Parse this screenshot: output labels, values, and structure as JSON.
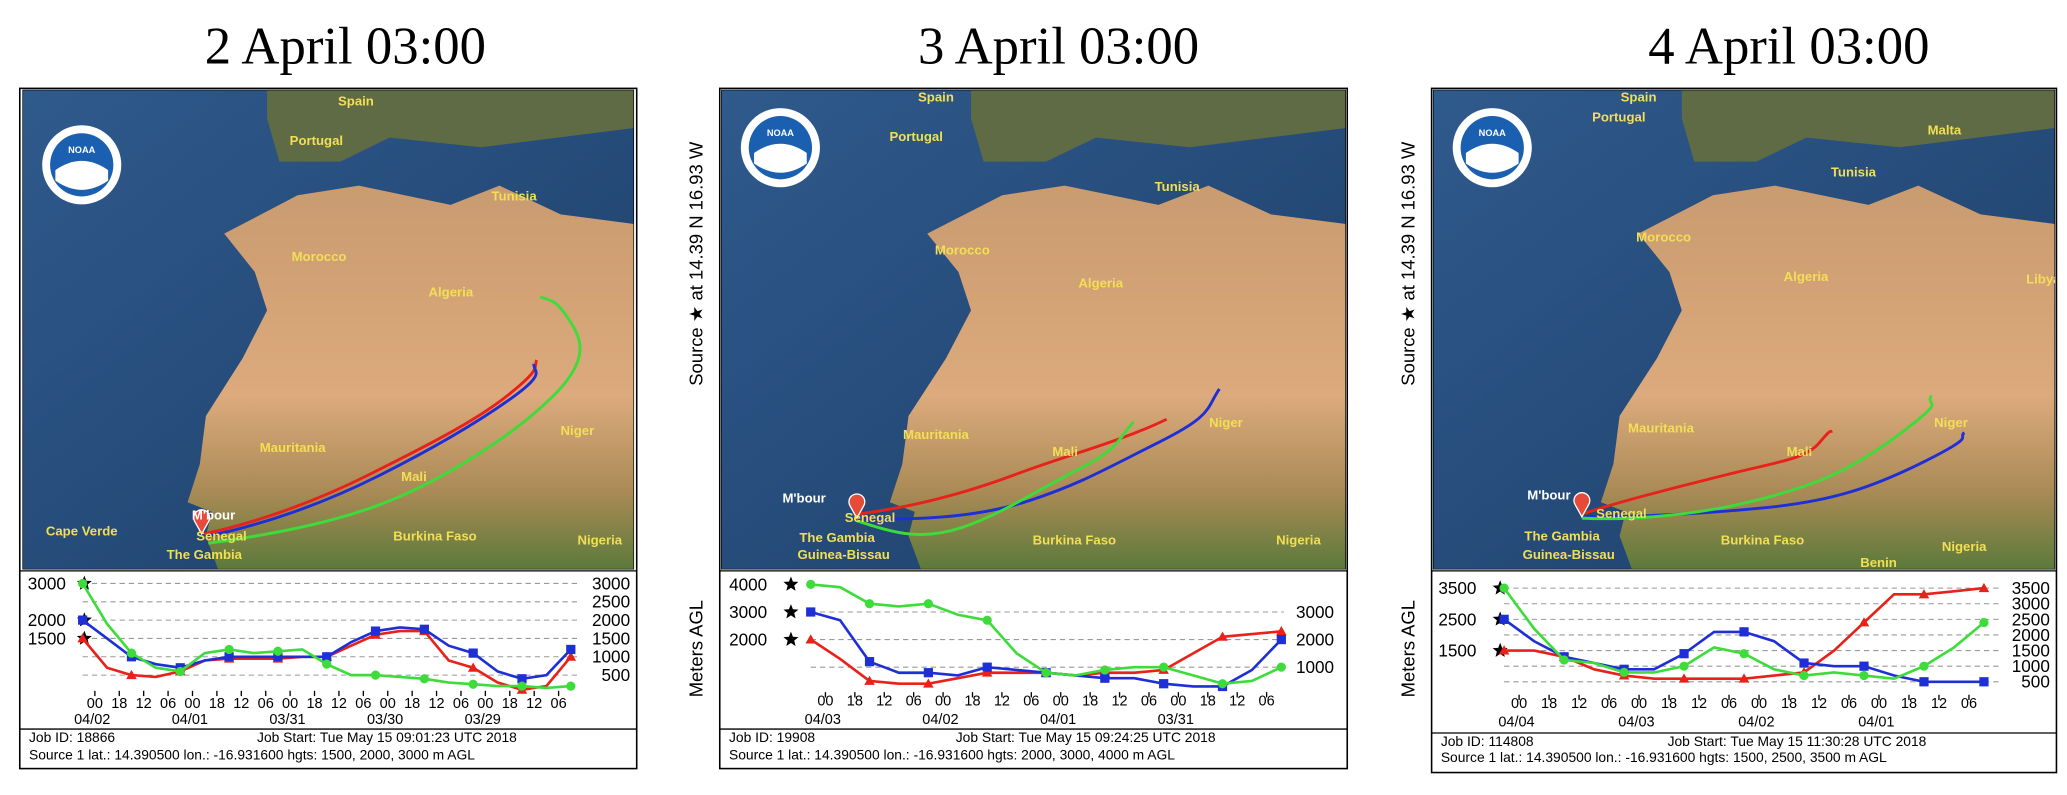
{
  "panels": [
    {
      "title": "2 April 03:00",
      "logo": "NOAA",
      "map_labels": [
        "Portugal",
        "Spain",
        "Tunisia",
        "Morocco",
        "Algeria",
        "Mauritania",
        "Mali",
        "Niger",
        "M'bour",
        "Cape Verde",
        "Senegal",
        "The Gambia",
        "Burkina Faso",
        "Nigeria"
      ],
      "chart": {
        "type": "line",
        "xlim": [
          0,
          120
        ],
        "ylim": [
          0,
          3200
        ],
        "xticks": [
          {
            "value": 3,
            "label": "00"
          },
          {
            "value": 9,
            "label": "18"
          },
          {
            "value": 15,
            "label": "12"
          },
          {
            "value": 21,
            "label": "06"
          },
          {
            "value": 27,
            "label": "00"
          },
          {
            "value": 33,
            "label": "18"
          },
          {
            "value": 39,
            "label": "12"
          },
          {
            "value": 45,
            "label": "06"
          },
          {
            "value": 51,
            "label": "00"
          },
          {
            "value": 57,
            "label": "18"
          },
          {
            "value": 63,
            "label": "12"
          },
          {
            "value": 69,
            "label": "06"
          },
          {
            "value": 75,
            "label": "00"
          },
          {
            "value": 81,
            "label": "18"
          },
          {
            "value": 87,
            "label": "12"
          },
          {
            "value": 93,
            "label": "06"
          },
          {
            "value": 99,
            "label": "00"
          },
          {
            "value": 105,
            "label": "18"
          },
          {
            "value": 111,
            "label": "12"
          },
          {
            "value": 117,
            "label": "06"
          }
        ],
        "date_ticks": [
          {
            "value": 3,
            "label": "04/02"
          },
          {
            "value": 27,
            "label": "04/01"
          },
          {
            "value": 51,
            "label": "03/31"
          },
          {
            "value": 75,
            "label": "03/30"
          },
          {
            "value": 99,
            "label": "03/29"
          }
        ],
        "yticks_left": [
          3000,
          2000,
          1500
        ],
        "yticks_right": [
          3000,
          2500,
          2000,
          1500,
          1000,
          500
        ],
        "grid": true,
        "x": [
          0,
          6,
          12,
          18,
          24,
          30,
          36,
          42,
          48,
          54,
          60,
          66,
          72,
          78,
          84,
          90,
          96,
          102,
          108,
          114,
          120
        ],
        "series": [
          {
            "color": "#e8221b",
            "marker": "triangle",
            "values": [
              1500,
              700,
              500,
              450,
              600,
              900,
              950,
              950,
              950,
              1000,
              1000,
              1300,
              1600,
              1700,
              1700,
              900,
              700,
              300,
              100,
              200,
              1000
            ]
          },
          {
            "color": "#1f2fd6",
            "marker": "square",
            "values": [
              2000,
              1500,
              1000,
              800,
              700,
              900,
              1000,
              1000,
              1000,
              1000,
              1000,
              1400,
              1700,
              1800,
              1750,
              1300,
              1100,
              600,
              400,
              500,
              1200
            ]
          },
          {
            "color": "#3ddc3a",
            "marker": "circle",
            "values": [
              3000,
              1900,
              1100,
              700,
              600,
              1100,
              1200,
              1100,
              1150,
              1200,
              800,
              500,
              500,
              450,
              400,
              300,
              250,
              200,
              200,
              150,
              200
            ]
          }
        ]
      },
      "info": {
        "job_id": "Job ID: 18866",
        "job_start": "Job Start: Tue May 15 09:01:23 UTC 2018",
        "source": "Source 1 lat.: 14.390500  lon.: -16.931600  hgts: 1500, 2000, 3000 m AGL"
      }
    },
    {
      "title": "3 April 03:00",
      "logo": "NOAA",
      "source_label": "Source ★ at 14.39 N 16.93 W",
      "y_label": "Meters AGL",
      "map_labels": [
        "Spain",
        "Portugal",
        "Tunisia",
        "Morocco",
        "Algeria",
        "Mauritania",
        "Mali",
        "Niger",
        "M'bour",
        "Senegal",
        "The Gambia",
        "Guinea-Bissau",
        "Burkina Faso",
        "Nigeria"
      ],
      "chart": {
        "type": "line",
        "xlim": [
          0,
          96
        ],
        "ylim": [
          0,
          4300
        ],
        "xticks": [
          {
            "value": 3,
            "label": "00"
          },
          {
            "value": 9,
            "label": "18"
          },
          {
            "value": 15,
            "label": "12"
          },
          {
            "value": 21,
            "label": "06"
          },
          {
            "value": 27,
            "label": "00"
          },
          {
            "value": 33,
            "label": "18"
          },
          {
            "value": 39,
            "label": "12"
          },
          {
            "value": 45,
            "label": "06"
          },
          {
            "value": 51,
            "label": "00"
          },
          {
            "value": 57,
            "label": "18"
          },
          {
            "value": 63,
            "label": "12"
          },
          {
            "value": 69,
            "label": "06"
          },
          {
            "value": 75,
            "label": "00"
          },
          {
            "value": 81,
            "label": "18"
          },
          {
            "value": 87,
            "label": "12"
          },
          {
            "value": 93,
            "label": "06"
          }
        ],
        "date_ticks": [
          {
            "value": 3,
            "label": "04/03"
          },
          {
            "value": 27,
            "label": "04/02"
          },
          {
            "value": 51,
            "label": "04/01"
          },
          {
            "value": 75,
            "label": "03/31"
          }
        ],
        "yticks_left": [
          4000,
          3000,
          2000
        ],
        "yticks_right": [
          3000,
          2000,
          1000
        ],
        "grid": true,
        "x": [
          0,
          6,
          12,
          18,
          24,
          30,
          36,
          42,
          48,
          54,
          60,
          66,
          72,
          78,
          84,
          90,
          96
        ],
        "series": [
          {
            "color": "#e8221b",
            "marker": "triangle",
            "values": [
              2000,
              1300,
              500,
              400,
              400,
              600,
              800,
              800,
              800,
              700,
              800,
              800,
              900,
              1500,
              2100,
              2200,
              2300
            ]
          },
          {
            "color": "#1f2fd6",
            "marker": "square",
            "values": [
              3000,
              2700,
              1200,
              800,
              800,
              700,
              1000,
              900,
              800,
              700,
              600,
              600,
              400,
              300,
              300,
              900,
              2000
            ]
          },
          {
            "color": "#3ddc3a",
            "marker": "circle",
            "values": [
              4000,
              3900,
              3300,
              3200,
              3300,
              2900,
              2700,
              1500,
              800,
              700,
              900,
              1000,
              1000,
              700,
              400,
              500,
              1000
            ]
          }
        ]
      },
      "info": {
        "job_id": "Job ID: 19908",
        "job_start": "Job Start: Tue May 15 09:24:25 UTC 2018",
        "source": "Source 1 lat.: 14.390500  lon.: -16.931600  hgts: 2000, 3000, 4000 m AGL"
      }
    },
    {
      "title": "4 April 03:00",
      "logo": "NOAA",
      "source_label": "Source ★ at 14.39 N 16.93 W",
      "y_label": "Meters AGL",
      "map_labels": [
        "Spain",
        "Portugal",
        "Malta",
        "Tunisia",
        "Morocco",
        "Algeria",
        "Libya",
        "Mauritania",
        "Mali",
        "Niger",
        "M'bour",
        "Senegal",
        "The Gambia",
        "Guinea-Bissau",
        "Burkina Faso",
        "Benin",
        "Nigeria"
      ],
      "chart": {
        "type": "line",
        "xlim": [
          0,
          96
        ],
        "ylim": [
          0,
          3800
        ],
        "xticks": [
          {
            "value": 3,
            "label": "00"
          },
          {
            "value": 9,
            "label": "18"
          },
          {
            "value": 15,
            "label": "12"
          },
          {
            "value": 21,
            "label": "06"
          },
          {
            "value": 27,
            "label": "00"
          },
          {
            "value": 33,
            "label": "18"
          },
          {
            "value": 39,
            "label": "12"
          },
          {
            "value": 45,
            "label": "06"
          },
          {
            "value": 51,
            "label": "00"
          },
          {
            "value": 57,
            "label": "18"
          },
          {
            "value": 63,
            "label": "12"
          },
          {
            "value": 69,
            "label": "06"
          },
          {
            "value": 75,
            "label": "00"
          },
          {
            "value": 81,
            "label": "18"
          },
          {
            "value": 87,
            "label": "12"
          },
          {
            "value": 93,
            "label": "06"
          }
        ],
        "date_ticks": [
          {
            "value": 3,
            "label": "04/04"
          },
          {
            "value": 27,
            "label": "04/03"
          },
          {
            "value": 51,
            "label": "04/02"
          },
          {
            "value": 75,
            "label": "04/01"
          }
        ],
        "yticks_left": [
          3500,
          2500,
          1500
        ],
        "yticks_right": [
          3500,
          3000,
          2500,
          2000,
          1500,
          1000,
          500
        ],
        "grid": true,
        "x": [
          0,
          6,
          12,
          18,
          24,
          30,
          36,
          42,
          48,
          54,
          60,
          66,
          72,
          78,
          84,
          90,
          96
        ],
        "series": [
          {
            "color": "#e8221b",
            "marker": "triangle",
            "values": [
              1500,
              1500,
              1300,
              900,
              700,
              600,
              600,
              600,
              600,
              700,
              800,
              1500,
              2400,
              3300,
              3300,
              3400,
              3500
            ]
          },
          {
            "color": "#1f2fd6",
            "marker": "square",
            "values": [
              2500,
              1800,
              1300,
              1100,
              900,
              900,
              1400,
              2100,
              2100,
              1800,
              1100,
              1000,
              1000,
              700,
              500,
              500,
              500
            ]
          },
          {
            "color": "#3ddc3a",
            "marker": "circle",
            "values": [
              3500,
              2200,
              1200,
              1100,
              800,
              800,
              1000,
              1600,
              1400,
              900,
              700,
              800,
              700,
              600,
              1000,
              1600,
              2400
            ]
          }
        ]
      },
      "info": {
        "job_id": "Job ID: 114808",
        "job_start": "Job Start: Tue May 15 11:30:28 UTC 2018",
        "source": "Source 1 lat.: 14.390500  lon.: -16.931600  hgts: 1500, 2500, 3500 m AGL"
      }
    }
  ]
}
